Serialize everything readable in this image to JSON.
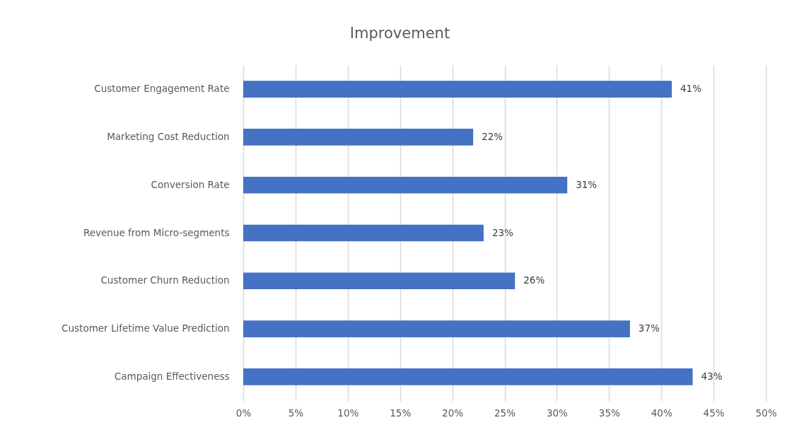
{
  "chart_data": {
    "type": "bar",
    "orientation": "horizontal",
    "title": "Improvement",
    "categories": [
      "Customer Engagement Rate",
      "Marketing Cost Reduction",
      "Conversion Rate",
      "Revenue from Micro-segments",
      "Customer Churn Reduction",
      "Customer Lifetime Value Prediction",
      "Campaign Effectiveness"
    ],
    "values": [
      41,
      22,
      31,
      23,
      26,
      37,
      43
    ],
    "value_labels": [
      "41%",
      "22%",
      "31%",
      "23%",
      "26%",
      "37%",
      "43%"
    ],
    "color": "#4472c4",
    "xlim": [
      0,
      50
    ],
    "xticks": [
      {
        "value": 0,
        "label": "0%"
      },
      {
        "value": 5,
        "label": "5%"
      },
      {
        "value": 10,
        "label": "10%"
      },
      {
        "value": 15,
        "label": "15%"
      },
      {
        "value": 20,
        "label": "20%"
      },
      {
        "value": 25,
        "label": "25%"
      },
      {
        "value": 30,
        "label": "30%"
      },
      {
        "value": 35,
        "label": "35%"
      },
      {
        "value": 40,
        "label": "40%"
      },
      {
        "value": 45,
        "label": "45%"
      },
      {
        "value": 50,
        "label": "50%"
      }
    ],
    "grid": "x"
  }
}
